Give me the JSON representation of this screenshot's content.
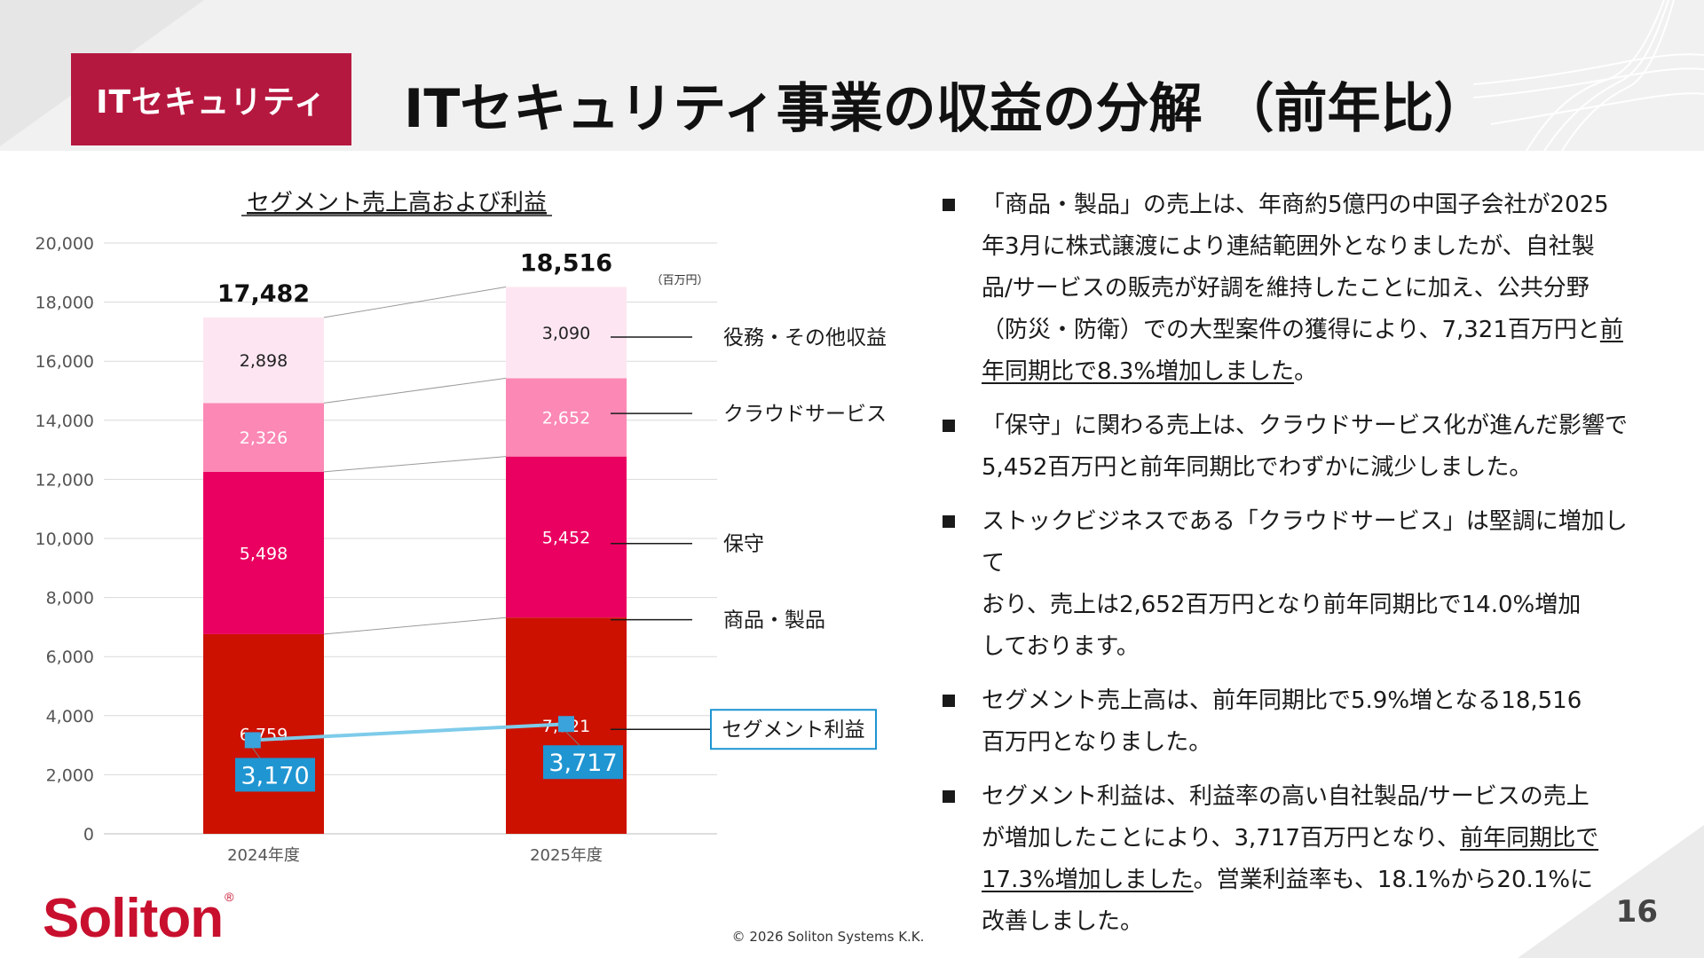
{
  "header": {
    "badge": "ITセキュリティ",
    "title": "ITセキュリティ事業の収益の分解 （前年比）"
  },
  "chart_data": {
    "type": "bar",
    "stacked": true,
    "title": "セグメント売上高および利益",
    "unit": "（百万円）",
    "categories": [
      "2024年度",
      "2025年度"
    ],
    "ylim": [
      0,
      20000
    ],
    "yticks": [
      0,
      2000,
      4000,
      6000,
      8000,
      10000,
      12000,
      14000,
      16000,
      18000,
      20000
    ],
    "ytick_labels": [
      "0",
      "2,000",
      "4,000",
      "6,000",
      "8,000",
      "10,000",
      "12,000",
      "14,000",
      "16,000",
      "18,000",
      "20,000"
    ],
    "grid": true,
    "series": [
      {
        "name": "商品・製品",
        "values": [
          6759,
          7321
        ],
        "labels": [
          "6,759",
          "7,321"
        ],
        "color": "#cc1100",
        "text_color": "#ffffff"
      },
      {
        "name": "保守",
        "values": [
          5498,
          5452
        ],
        "labels": [
          "5,498",
          "5,452"
        ],
        "color": "#ea0060",
        "text_color": "#ffffff"
      },
      {
        "name": "クラウドサービス",
        "values": [
          2326,
          2652
        ],
        "labels": [
          "2,326",
          "2,652"
        ],
        "color": "#fb88b5",
        "text_color": "#ffffff"
      },
      {
        "name": "役務・その他収益",
        "values": [
          2898,
          3090
        ],
        "labels": [
          "2,898",
          "3,090"
        ],
        "color": "#fde6f1",
        "text_color": "#222222"
      }
    ],
    "totals": [
      17482,
      18516
    ],
    "total_labels": [
      "17,482",
      "18,516"
    ],
    "line_series": {
      "name": "セグメント利益",
      "values": [
        3170,
        3717
      ],
      "labels": [
        "3,170",
        "3,717"
      ],
      "color": "#7ecbea",
      "marker_color": "#3aa3dc",
      "label_bg": "#1f95d2"
    }
  },
  "bullets": [
    {
      "pre": "「商品・製品」の売上は、年商約5億円の中国子会社が2025\n年3月に株式譲渡により連結範囲外となりましたが、自社製\n品/サービスの販売が好調を維持したことに加え、公共分野\n（防災・防衛）での大型案件の獲得により、7,321百万円と",
      "u": "前\n年同期比で8.3%増加しました",
      "post": "。"
    },
    {
      "pre": "「保守」に関わる売上は、クラウドサービス化が進んだ影響で\n5,452百万円と前年同期比でわずかに減少しました。",
      "u": "",
      "post": ""
    },
    {
      "pre": "ストックビジネスである「クラウドサービス」は堅調に増加して\nおり、売上は2,652百万円となり前年同期比で14.0%増加\nしております。",
      "u": "",
      "post": ""
    },
    {
      "pre": "セグメント売上高は、前年同期比で5.9%増となる18,516\n百万円となりました。",
      "u": "",
      "post": ""
    },
    {
      "pre": "セグメント利益は、利益率の高い自社製品/サービスの売上\nが増加したことにより、3,717百万円となり、",
      "u": "前年同期比で\n17.3%増加しました",
      "post": "。営業利益率も、18.1%から20.1%に\n改善しました。"
    }
  ],
  "footer": {
    "logo": "Soliton",
    "logo_mark": "®",
    "copyright": "© 2026 Soliton Systems K.K.",
    "page_number": "16"
  }
}
